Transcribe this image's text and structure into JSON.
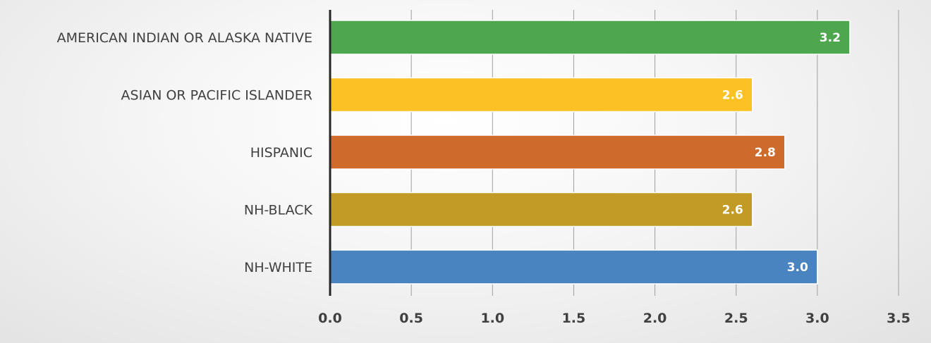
{
  "chart_data": {
    "type": "bar",
    "orientation": "horizontal",
    "categories": [
      "AMERICAN INDIAN OR ALASKA NATIVE",
      "ASIAN OR PACIFIC ISLANDER",
      "HISPANIC",
      "NH-BLACK",
      "NH-WHITE"
    ],
    "values": [
      3.2,
      2.6,
      2.8,
      2.6,
      3.0
    ],
    "data_labels": [
      "3.2",
      "2.6",
      "2.8",
      "2.6",
      "3.0"
    ],
    "colors": [
      "#4ea64e",
      "#fbc125",
      "#cd6a2c",
      "#c29b26",
      "#4a84c0"
    ],
    "xlim": [
      0,
      3.5
    ],
    "x_ticks": [
      "0.0",
      "0.5",
      "1.0",
      "1.5",
      "2.0",
      "2.5",
      "3.0",
      "3.5"
    ],
    "title": "",
    "xlabel": "",
    "ylabel": "",
    "grid": "vertical",
    "legend": "none"
  }
}
